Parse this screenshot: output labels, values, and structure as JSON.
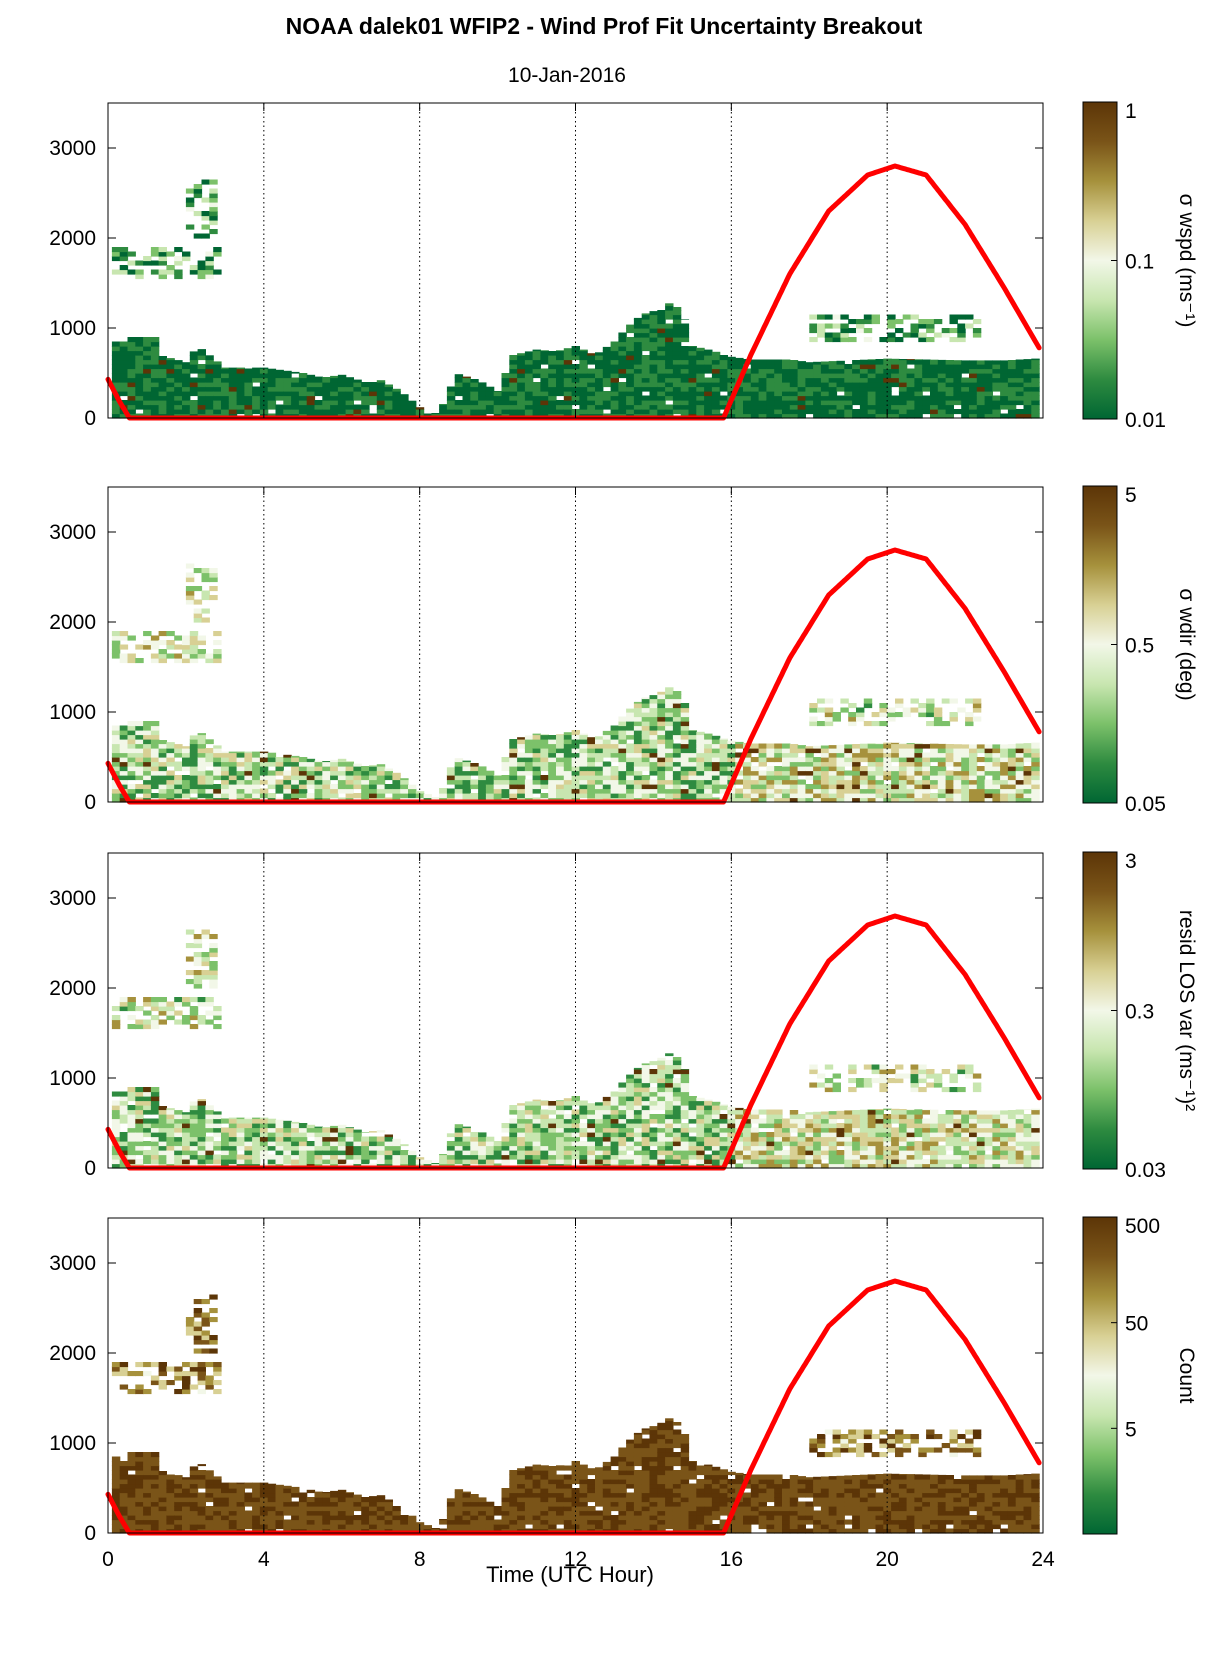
{
  "title": "NOAA dalek01 WFIP2 - Wind Prof Fit Uncertainty Breakout",
  "subtitle": "10-Jan-2016",
  "xlabel": "Time (UTC Hour)",
  "colors": {
    "sun_curve": "#ff0000",
    "colormap": [
      "#006633",
      "#2e8b40",
      "#7cc16a",
      "#c8e6b0",
      "#f2f7e8",
      "#d8d094",
      "#a6913c",
      "#7a5418",
      "#5c3507"
    ]
  },
  "chart_data": {
    "type": "heatmap",
    "panels": [
      {
        "name": "wspd",
        "colorbar_label": "σ wspd (ms⁻¹)",
        "colorbar_scale": "log",
        "colorbar_range": [
          0.01,
          1
        ],
        "colorbar_ticks": [
          "1",
          "0.1",
          "0.01"
        ]
      },
      {
        "name": "wdir",
        "colorbar_label": "σ wdir (deg)",
        "colorbar_scale": "log",
        "colorbar_range": [
          0.05,
          5
        ],
        "colorbar_ticks": [
          "5",
          "0.5",
          "0.05"
        ]
      },
      {
        "name": "resid",
        "colorbar_label": "resid LOS var (ms⁻¹)²",
        "colorbar_scale": "log",
        "colorbar_range": [
          0.03,
          3
        ],
        "colorbar_ticks": [
          "3",
          "0.3",
          "0.03"
        ]
      },
      {
        "name": "count",
        "colorbar_label": "Count",
        "colorbar_scale": "log",
        "colorbar_range": [
          0.5,
          500
        ],
        "colorbar_ticks": [
          "500",
          "50",
          "5"
        ]
      }
    ],
    "x_range": [
      0,
      24
    ],
    "x_ticks": [
      "0",
      "4",
      "8",
      "12",
      "16",
      "20",
      "24"
    ],
    "y_range": [
      0,
      3500
    ],
    "y_ticks": [
      "0",
      "1000",
      "2000",
      "3000"
    ],
    "grid": "vertical dotted lines at x ticks",
    "sun_elevation_curve": {
      "x": [
        0,
        0.3,
        0.55,
        15.8,
        16.5,
        17.5,
        18.5,
        19.5,
        20.2,
        21,
        22,
        23,
        23.9
      ],
      "y": [
        430,
        180,
        0,
        0,
        700,
        1600,
        2300,
        2700,
        2800,
        2700,
        2150,
        1450,
        780
      ]
    },
    "data_envelope": {
      "x": [
        0.1,
        0.5,
        0.6,
        1.2,
        1.3,
        2.0,
        2.3,
        3.0,
        4.0,
        5.0,
        5.5,
        6.0,
        6.6,
        7.0,
        7.5,
        8.0,
        8.5,
        8.9,
        9.5,
        10.0,
        10.4,
        11.0,
        11.5,
        12.0,
        12.5,
        13.0,
        13.3,
        13.7,
        14.1,
        14.5,
        14.8,
        15.0,
        15.5,
        16.0,
        16.5,
        17.0,
        17.5,
        18.0,
        19.0,
        20.0,
        21.0,
        22.0,
        23.0,
        23.8
      ],
      "top": [
        850,
        850,
        900,
        900,
        700,
        620,
        800,
        560,
        560,
        500,
        450,
        480,
        400,
        420,
        300,
        120,
        40,
        500,
        420,
        300,
        700,
        760,
        740,
        800,
        700,
        850,
        1000,
        1150,
        1200,
        1300,
        1100,
        800,
        750,
        680,
        650,
        650,
        650,
        620,
        640,
        660,
        650,
        640,
        640,
        660
      ]
    },
    "upper_layers": [
      {
        "x": [
          0.1,
          2.8
        ],
        "y": [
          1550,
          1900
        ]
      },
      {
        "x": [
          2.0,
          2.8
        ],
        "y": [
          2000,
          2650
        ]
      },
      {
        "x": [
          18.0,
          22.2
        ],
        "y": [
          850,
          1150
        ]
      }
    ]
  }
}
